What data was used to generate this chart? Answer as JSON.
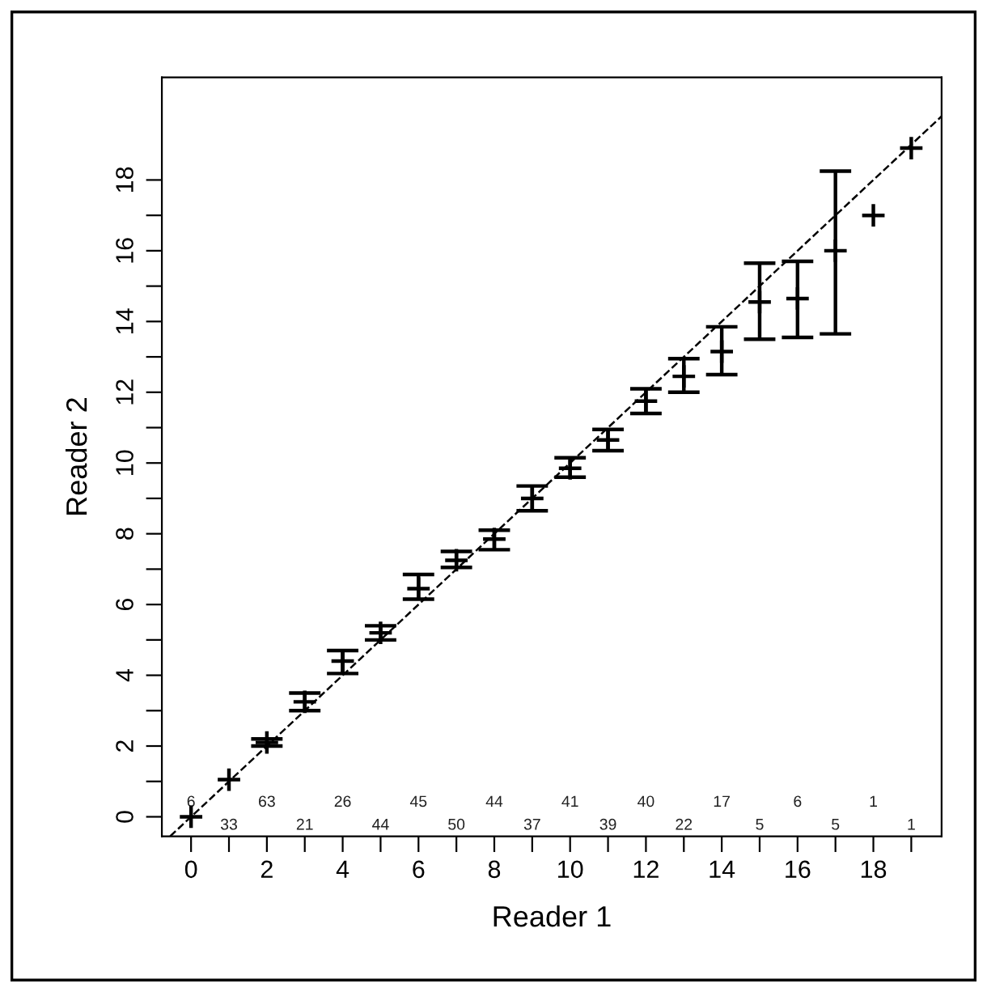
{
  "chart_data": {
    "type": "scatter",
    "xlabel": "Reader 1",
    "ylabel": "Reader 2",
    "xlim": [
      -0.77,
      19.8
    ],
    "ylim": [
      -0.55,
      20.9
    ],
    "xticks": [
      0,
      {
        "value": 1,
        "label": null
      },
      2,
      {
        "value": 3,
        "label": null
      },
      4,
      {
        "value": 5,
        "label": null
      },
      6,
      {
        "value": 7,
        "label": null
      },
      8,
      {
        "value": 9,
        "label": null
      },
      10,
      {
        "value": 11,
        "label": null
      },
      12,
      {
        "value": 13,
        "label": null
      },
      14,
      {
        "value": 15,
        "label": null
      },
      16,
      {
        "value": 17,
        "label": null
      },
      18,
      {
        "value": 19,
        "label": null
      }
    ],
    "yticks": [
      0,
      {
        "value": 1,
        "label": null
      },
      2,
      {
        "value": 3,
        "label": null
      },
      4,
      {
        "value": 5,
        "label": null
      },
      6,
      {
        "value": 7,
        "label": null
      },
      8,
      {
        "value": 9,
        "label": null
      },
      10,
      {
        "value": 11,
        "label": null
      },
      12,
      {
        "value": 13,
        "label": null
      },
      14,
      {
        "value": 15,
        "label": null
      },
      16,
      {
        "value": 17,
        "label": null
      },
      18
    ],
    "grid": false,
    "series": [
      {
        "marker": "cross",
        "color": "#000000",
        "x": [
          0,
          1,
          2,
          3,
          4,
          5,
          6,
          7,
          8,
          9,
          10,
          11,
          12,
          13,
          14,
          15,
          16,
          17,
          18,
          19
        ],
        "values": [
          0,
          1.05,
          2.1,
          3.25,
          4.4,
          5.2,
          6.45,
          7.25,
          7.85,
          9.0,
          9.85,
          10.65,
          11.75,
          12.45,
          13.15,
          14.55,
          14.65,
          16.0,
          17.0,
          18.9
        ],
        "errors": [
          null,
          null,
          [
            2.0,
            2.2
          ],
          [
            3.0,
            3.5
          ],
          [
            4.05,
            4.7
          ],
          [
            5.0,
            5.4
          ],
          [
            6.15,
            6.85
          ],
          [
            7.05,
            7.5
          ],
          [
            7.55,
            8.1
          ],
          [
            8.65,
            9.35
          ],
          [
            9.6,
            10.15
          ],
          [
            10.35,
            10.95
          ],
          [
            11.4,
            12.1
          ],
          [
            12.0,
            12.95
          ],
          [
            12.5,
            13.85
          ],
          [
            13.5,
            15.65
          ],
          [
            13.55,
            15.7
          ],
          [
            13.65,
            18.25
          ],
          null,
          null
        ]
      },
      {
        "type": "line",
        "color": "#000000",
        "line_style": "dashed",
        "x": [
          -0.55,
          19.8
        ],
        "values": [
          -0.55,
          19.8
        ]
      }
    ],
    "annotations": [
      "6",
      "33",
      "63",
      "21",
      "26",
      "44",
      "45",
      "50",
      "44",
      "37",
      "41",
      "39",
      "40",
      "22",
      "17",
      "5",
      "6",
      "5",
      "1",
      "1"
    ]
  }
}
